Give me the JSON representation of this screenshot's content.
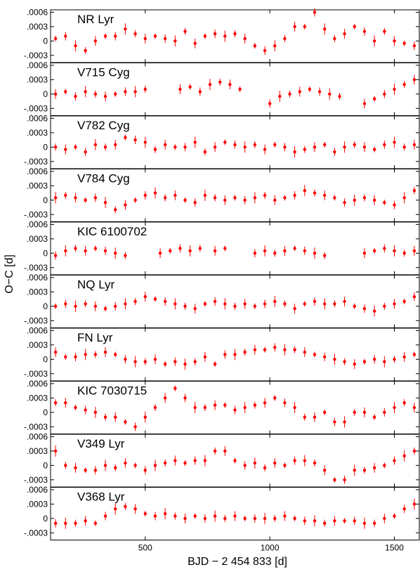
{
  "chart_data": {
    "type": "scatter",
    "xlabel": "BJD − 2 454 833 [d]",
    "ylabel": "O−C [d]",
    "xlim": [
      120,
      1600
    ],
    "xticks": [
      500,
      1000,
      1500
    ],
    "ylim": [
      -0.00045,
      0.00065
    ],
    "yticks": [
      0.0006,
      0.0003,
      0,
      -0.0003
    ],
    "ytick_labels": [
      ".0006",
      ".0003",
      "0",
      "-.0003"
    ],
    "point_color": "#ff0000",
    "panels": [
      {
        "name": "NR Lyr",
        "x": [
          140,
          180,
          220,
          260,
          300,
          340,
          380,
          420,
          460,
          500,
          540,
          580,
          620,
          660,
          700,
          740,
          780,
          820,
          860,
          900,
          940,
          980,
          1020,
          1060,
          1100,
          1140,
          1180,
          1220,
          1260,
          1300,
          1340,
          1380,
          1420,
          1460,
          1500,
          1540,
          1580
        ],
        "y": [
          5e-05,
          0.0001,
          -0.0001,
          -0.0002,
          0,
          0.0001,
          0.0001,
          0.00025,
          0.00015,
          5e-05,
          0.0001,
          5e-05,
          0,
          0.0002,
          -5e-05,
          0.0001,
          0.00015,
          0.0001,
          0.00015,
          5e-05,
          -0.0001,
          -0.0002,
          -0.0001,
          5e-05,
          0.0003,
          0.0003,
          0.0006,
          0.00025,
          5e-05,
          0.00015,
          0.0003,
          0.0002,
          0,
          0.0002,
          0,
          -5e-05,
          -0.0001
        ]
      },
      {
        "name": "V715 Cyg",
        "x": [
          140,
          180,
          220,
          260,
          300,
          340,
          380,
          420,
          460,
          500,
          640,
          680,
          720,
          760,
          800,
          840,
          880,
          1000,
          1040,
          1080,
          1120,
          1160,
          1200,
          1240,
          1280,
          1380,
          1420,
          1460,
          1500,
          1540,
          1580
        ],
        "y": [
          0,
          5e-05,
          -5e-05,
          5e-05,
          0,
          -5e-05,
          0,
          5e-05,
          5e-05,
          0.0001,
          0.0001,
          0.00015,
          5e-05,
          0.0002,
          0.00025,
          0.0002,
          0.0001,
          -0.0002,
          -5e-05,
          0,
          5e-05,
          0.0001,
          5e-05,
          0,
          -5e-05,
          -0.0002,
          -0.0001,
          0,
          0.0001,
          0.0002,
          0.0003
        ]
      },
      {
        "name": "V782 Cyg",
        "x": [
          140,
          180,
          220,
          260,
          300,
          340,
          380,
          420,
          460,
          500,
          540,
          580,
          620,
          660,
          700,
          740,
          780,
          820,
          860,
          900,
          940,
          980,
          1020,
          1060,
          1100,
          1140,
          1180,
          1220,
          1260,
          1300,
          1340,
          1380,
          1420,
          1460,
          1500,
          1540,
          1580
        ],
        "y": [
          0,
          -5e-05,
          0,
          -0.0001,
          5e-05,
          0,
          5e-05,
          0.0002,
          0.00015,
          0.0001,
          -5e-05,
          5e-05,
          0,
          0,
          0.0001,
          -0.0001,
          0,
          0.0001,
          5e-05,
          0,
          5e-05,
          -5e-05,
          5e-05,
          0,
          -0.0001,
          -5e-05,
          0,
          5e-05,
          -0.0001,
          0,
          5e-05,
          0,
          -5e-05,
          5e-05,
          0.0001,
          0,
          5e-05
        ]
      },
      {
        "name": "V784 Cyg",
        "x": [
          140,
          180,
          220,
          260,
          300,
          340,
          380,
          420,
          460,
          500,
          540,
          580,
          620,
          660,
          700,
          740,
          780,
          820,
          860,
          900,
          940,
          980,
          1020,
          1060,
          1100,
          1140,
          1180,
          1220,
          1260,
          1300,
          1340,
          1380,
          1420,
          1460,
          1500,
          1540,
          1580
        ],
        "y": [
          5e-05,
          0.0001,
          5e-05,
          0,
          5e-05,
          -5e-05,
          -0.0002,
          -0.0001,
          0,
          0.0001,
          0.00015,
          5e-05,
          0.0001,
          0,
          -5e-05,
          0.0001,
          5e-05,
          0,
          5e-05,
          0,
          5e-05,
          0.0001,
          0,
          5e-05,
          0.0001,
          0.0002,
          0.00015,
          0.0001,
          5e-05,
          -5e-05,
          0,
          5e-05,
          0,
          -5e-05,
          -0.0001,
          5e-05,
          0.0002
        ]
      },
      {
        "name": "KIC 6100702",
        "x": [
          140,
          180,
          220,
          260,
          300,
          340,
          380,
          420,
          560,
          600,
          640,
          680,
          720,
          780,
          820,
          940,
          980,
          1020,
          1060,
          1100,
          1140,
          1180,
          1220,
          1380,
          1420,
          1460,
          1500,
          1540,
          1580
        ],
        "y": [
          -5e-05,
          5e-05,
          0.0001,
          5e-05,
          0.0001,
          5e-05,
          0,
          -5e-05,
          0,
          5e-05,
          0.0001,
          5e-05,
          0.0001,
          5e-05,
          0.0001,
          0,
          5e-05,
          0,
          5e-05,
          0.0001,
          5e-05,
          0,
          -5e-05,
          0,
          5e-05,
          0.0001,
          5e-05,
          0,
          5e-05
        ]
      },
      {
        "name": "NQ Lyr",
        "x": [
          140,
          180,
          220,
          260,
          300,
          340,
          380,
          420,
          460,
          500,
          540,
          580,
          620,
          660,
          700,
          740,
          780,
          820,
          860,
          900,
          940,
          980,
          1020,
          1060,
          1100,
          1140,
          1180,
          1220,
          1260,
          1300,
          1340,
          1380,
          1420,
          1460,
          1500,
          1540,
          1580
        ],
        "y": [
          0,
          5e-05,
          0,
          5e-05,
          0,
          -5e-05,
          0,
          5e-05,
          0.0001,
          0.0002,
          0.00015,
          0.0001,
          5e-05,
          0,
          -5e-05,
          5e-05,
          0.0001,
          5e-05,
          0,
          5e-05,
          0,
          5e-05,
          0.0001,
          5e-05,
          -5e-05,
          5e-05,
          0.0001,
          5e-05,
          5e-05,
          0.0001,
          0,
          -5e-05,
          -0.0001,
          0,
          5e-05,
          0.0001,
          0.0002
        ]
      },
      {
        "name": "FN Lyr",
        "x": [
          140,
          180,
          220,
          260,
          300,
          340,
          380,
          420,
          460,
          500,
          540,
          580,
          620,
          660,
          700,
          740,
          780,
          820,
          860,
          900,
          940,
          980,
          1020,
          1060,
          1100,
          1140,
          1180,
          1220,
          1260,
          1300,
          1340,
          1380,
          1420,
          1460,
          1500,
          1540,
          1580
        ],
        "y": [
          0.00015,
          5e-05,
          5e-05,
          0.0001,
          0.0001,
          0.00015,
          0.0001,
          0,
          -5e-05,
          -5e-05,
          0,
          -0.0001,
          -5e-05,
          -0.0001,
          -5e-05,
          5e-05,
          -0.0001,
          0.0001,
          0.0001,
          0.00015,
          0.0002,
          0.0002,
          0.00025,
          0.0002,
          0.0002,
          0.00015,
          0.0001,
          5e-05,
          0,
          -5e-05,
          -0.0001,
          -5e-05,
          0,
          -5e-05,
          0,
          5e-05,
          0.0001
        ]
      },
      {
        "name": "KIC 7030715",
        "x": [
          140,
          180,
          220,
          260,
          300,
          340,
          380,
          420,
          460,
          500,
          540,
          580,
          620,
          660,
          700,
          740,
          780,
          820,
          860,
          900,
          940,
          980,
          1020,
          1060,
          1100,
          1140,
          1180,
          1220,
          1260,
          1300,
          1340,
          1380,
          1420,
          1460,
          1500,
          1540,
          1580
        ],
        "y": [
          0.0002,
          0.0002,
          0.0001,
          5e-05,
          0,
          -0.0001,
          -0.0001,
          -0.0002,
          -0.0003,
          -0.0001,
          0.0001,
          0.0003,
          0.0005,
          0.0003,
          0.0001,
          0.0001,
          0.00015,
          0.00015,
          5e-05,
          0.0001,
          0.00015,
          0.0002,
          0.0003,
          0.0002,
          0.0001,
          -0.0001,
          -0.0001,
          0,
          -0.0002,
          -0.0002,
          0,
          0,
          -0.0001,
          0,
          0.0001,
          0.0002,
          0.0001
        ]
      },
      {
        "name": "V349 Lyr",
        "x": [
          140,
          180,
          220,
          260,
          300,
          340,
          380,
          420,
          460,
          500,
          540,
          580,
          620,
          660,
          700,
          740,
          780,
          820,
          860,
          900,
          940,
          980,
          1020,
          1060,
          1100,
          1140,
          1180,
          1220,
          1260,
          1300,
          1340,
          1380,
          1420,
          1460,
          1500,
          1540,
          1580
        ],
        "y": [
          0.0003,
          0,
          -5e-05,
          -0.0001,
          -0.0001,
          0,
          -5e-05,
          5e-05,
          0,
          -0.0001,
          0,
          5e-05,
          0.0001,
          5e-05,
          0.0001,
          0.0001,
          0.0003,
          0.0003,
          0.0001,
          0,
          5e-05,
          -5e-05,
          5e-05,
          0,
          0.0001,
          0.0001,
          5e-05,
          -0.0001,
          -0.0003,
          -0.0003,
          -0.0001,
          -0.0001,
          -5e-05,
          0,
          0.0001,
          0.0002,
          0.0003
        ]
      },
      {
        "name": "V368 Lyr",
        "x": [
          140,
          180,
          220,
          260,
          300,
          340,
          380,
          420,
          460,
          500,
          540,
          580,
          620,
          660,
          700,
          740,
          780,
          820,
          860,
          900,
          940,
          980,
          1020,
          1060,
          1100,
          1140,
          1180,
          1220,
          1260,
          1300,
          1340,
          1380,
          1420,
          1460,
          1500,
          1540,
          1580
        ],
        "y": [
          -0.0001,
          -0.0001,
          -0.0001,
          -5e-05,
          -0.0001,
          5e-05,
          0.0002,
          0.00025,
          0.0002,
          0.0001,
          5e-05,
          0.0001,
          5e-05,
          0,
          5e-05,
          0,
          5e-05,
          0,
          5e-05,
          0,
          0,
          0,
          0,
          5e-05,
          0,
          -5e-05,
          -5e-05,
          -0.0001,
          -5e-05,
          -5e-05,
          -5e-05,
          -0.0001,
          -0.0001,
          0,
          5e-05,
          0.0002,
          0.0003
        ]
      }
    ]
  }
}
